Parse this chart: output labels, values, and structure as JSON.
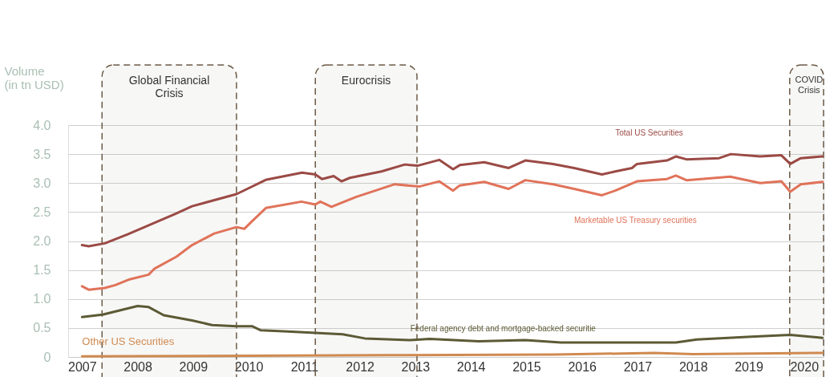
{
  "chart_data": {
    "type": "line",
    "ylabel": "Volume\n(in tn USD)",
    "xlim": [
      2007.25,
      2020.85
    ],
    "xticks": [
      {
        "value": 2007.5,
        "label": "2007"
      },
      {
        "value": 2008.5,
        "label": "2008"
      },
      {
        "value": 2009.5,
        "label": "2009"
      },
      {
        "value": 2010.5,
        "label": "2010"
      },
      {
        "value": 2011.5,
        "label": "2011"
      },
      {
        "value": 2012.5,
        "label": "2012"
      },
      {
        "value": 2013.5,
        "label": "2013"
      },
      {
        "value": 2014.5,
        "label": "2014"
      },
      {
        "value": 2015.5,
        "label": "2015"
      },
      {
        "value": 2016.5,
        "label": "2016"
      },
      {
        "value": 2017.5,
        "label": "2017"
      },
      {
        "value": 2018.5,
        "label": "2018"
      },
      {
        "value": 2019.5,
        "label": "2019"
      },
      {
        "value": 2020.5,
        "label": "2020"
      }
    ],
    "ylim": [
      0,
      4.0
    ],
    "yticks": [
      0,
      {
        "value": 0.5,
        "label": "0.5"
      },
      {
        "value": 1.0,
        "label": "1.0"
      },
      {
        "value": 1.5,
        "label": "1.5"
      },
      {
        "value": 2.0,
        "label": "2.0"
      },
      {
        "value": 2.5,
        "label": "2.5"
      },
      {
        "value": 3.0,
        "label": "3.0"
      },
      {
        "value": 3.5,
        "label": "3.5"
      },
      {
        "value": 4.0,
        "label": "4.0"
      }
    ],
    "grid": "y",
    "legend": false,
    "series": [
      {
        "name": "Total US Securities",
        "color": "#9b4a45",
        "x": [
          2007.5,
          2007.62,
          2007.91,
          2008.33,
          2008.7,
          2009.18,
          2009.48,
          2010.28,
          2010.82,
          2011.46,
          2011.7,
          2011.82,
          2012.03,
          2012.17,
          2012.32,
          2012.89,
          2013.31,
          2013.54,
          2013.93,
          2014.18,
          2014.3,
          2014.74,
          2015.18,
          2015.48,
          2015.98,
          2016.36,
          2016.86,
          2017.1,
          2017.4,
          2017.49,
          2018.03,
          2018.19,
          2018.38,
          2018.97,
          2019.18,
          2019.71,
          2020.09,
          2020.25,
          2020.44,
          2020.83
        ],
        "values": [
          1.93,
          1.91,
          1.96,
          2.12,
          2.27,
          2.47,
          2.6,
          2.81,
          3.06,
          3.18,
          3.15,
          3.07,
          3.12,
          3.03,
          3.09,
          3.2,
          3.32,
          3.3,
          3.4,
          3.24,
          3.31,
          3.36,
          3.26,
          3.39,
          3.33,
          3.26,
          3.15,
          3.2,
          3.26,
          3.33,
          3.39,
          3.46,
          3.41,
          3.43,
          3.5,
          3.46,
          3.48,
          3.33,
          3.43,
          3.46
        ]
      },
      {
        "name": "Marketable US Treasury securities",
        "color": "#e0735a",
        "x": [
          2007.5,
          2007.62,
          2007.91,
          2008.1,
          2008.36,
          2008.7,
          2008.8,
          2009.2,
          2009.48,
          2009.88,
          2010.28,
          2010.42,
          2010.56,
          2010.81,
          2011.45,
          2011.7,
          2011.79,
          2011.99,
          2012.43,
          2013.13,
          2013.57,
          2013.93,
          2014.18,
          2014.3,
          2014.74,
          2015.18,
          2015.48,
          2015.98,
          2016.36,
          2016.86,
          2017.1,
          2017.49,
          2018.03,
          2018.19,
          2018.38,
          2019.17,
          2019.71,
          2020.09,
          2020.25,
          2020.44,
          2020.83
        ],
        "values": [
          1.22,
          1.16,
          1.19,
          1.24,
          1.34,
          1.42,
          1.52,
          1.73,
          1.93,
          2.13,
          2.24,
          2.21,
          2.34,
          2.57,
          2.68,
          2.63,
          2.68,
          2.59,
          2.76,
          2.98,
          2.94,
          3.03,
          2.87,
          2.96,
          3.02,
          2.9,
          3.05,
          2.98,
          2.9,
          2.79,
          2.87,
          3.03,
          3.07,
          3.13,
          3.05,
          3.11,
          3.0,
          3.03,
          2.85,
          2.98,
          3.02
        ]
      },
      {
        "name": "Federal agency debt and mortgage-backed securitie",
        "color": "#5c5a35",
        "x": [
          2007.5,
          2007.87,
          2008.5,
          2008.7,
          2008.97,
          2009.48,
          2009.84,
          2010.28,
          2010.56,
          2010.72,
          2011.2,
          2012.19,
          2012.59,
          2013.41,
          2013.76,
          2014.64,
          2015.48,
          2016.12,
          2017.34,
          2018.19,
          2018.57,
          2019.55,
          2020.25,
          2020.83
        ],
        "values": [
          0.69,
          0.73,
          0.88,
          0.86,
          0.72,
          0.63,
          0.55,
          0.53,
          0.53,
          0.46,
          0.44,
          0.39,
          0.32,
          0.29,
          0.31,
          0.27,
          0.29,
          0.25,
          0.25,
          0.25,
          0.3,
          0.35,
          0.38,
          0.33
        ]
      },
      {
        "name": "Other US Securities",
        "color": "#d08a50",
        "x": [
          2007.5,
          2010.5,
          2013.0,
          2016.0,
          2017.8,
          2018.5,
          2020.83
        ],
        "values": [
          0.01,
          0.02,
          0.03,
          0.04,
          0.07,
          0.05,
          0.07
        ]
      }
    ],
    "bands": [
      {
        "axis": "x",
        "from": 2007.86,
        "to": 2010.28,
        "label": "Global Financial\nCrisis",
        "color": "#6b5a45"
      },
      {
        "axis": "x",
        "from": 2011.7,
        "to": 2013.53,
        "label": "Eurocrisis",
        "color": "#6b5a45"
      },
      {
        "axis": "x",
        "from": 2020.24,
        "to": 2020.85,
        "label": "COVID\nCrisis",
        "color": "#6b5a45"
      }
    ]
  }
}
